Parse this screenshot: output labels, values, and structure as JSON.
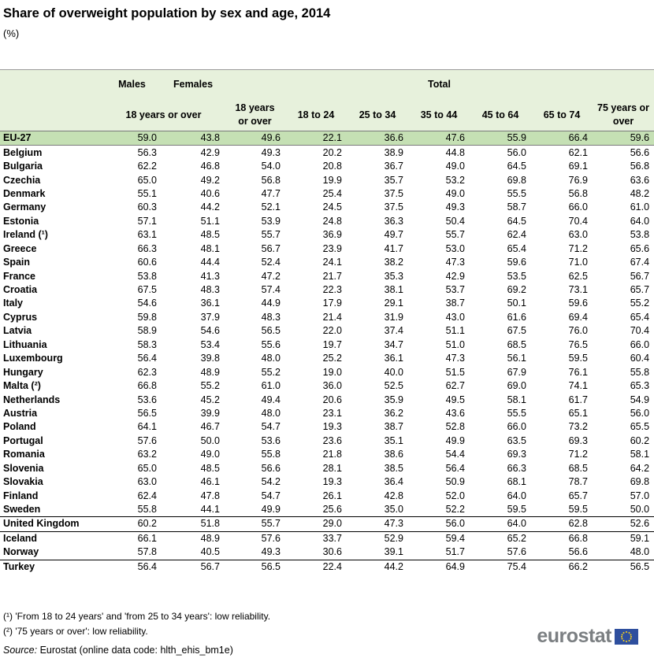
{
  "header": {
    "title": "Share of overweight population by sex and age, 2014",
    "unit": "(%)"
  },
  "table": {
    "groups": [
      "Males",
      "Females",
      "Total"
    ],
    "sub_sex": "18 years or over",
    "sub_total": [
      "18 years or over",
      "18 to 24",
      "25 to 34",
      "35 to 44",
      "45 to 64",
      "65 to 74",
      "75 years or over"
    ],
    "rows": [
      {
        "label": "EU-27",
        "values": [
          "59.0",
          "43.8",
          "49.6",
          "22.1",
          "36.6",
          "47.6",
          "55.9",
          "66.4",
          "59.6"
        ]
      },
      {
        "label": "Belgium",
        "values": [
          "56.3",
          "42.9",
          "49.3",
          "20.2",
          "38.9",
          "44.8",
          "56.0",
          "62.1",
          "56.6"
        ]
      },
      {
        "label": "Bulgaria",
        "values": [
          "62.2",
          "46.8",
          "54.0",
          "20.8",
          "36.7",
          "49.0",
          "64.5",
          "69.1",
          "56.8"
        ]
      },
      {
        "label": "Czechia",
        "values": [
          "65.0",
          "49.2",
          "56.8",
          "19.9",
          "35.7",
          "53.2",
          "69.8",
          "76.9",
          "63.6"
        ]
      },
      {
        "label": "Denmark",
        "values": [
          "55.1",
          "40.6",
          "47.7",
          "25.4",
          "37.5",
          "49.0",
          "55.5",
          "56.8",
          "48.2"
        ]
      },
      {
        "label": "Germany",
        "values": [
          "60.3",
          "44.2",
          "52.1",
          "24.5",
          "37.5",
          "49.3",
          "58.7",
          "66.0",
          "61.0"
        ]
      },
      {
        "label": "Estonia",
        "values": [
          "57.1",
          "51.1",
          "53.9",
          "24.8",
          "36.3",
          "50.4",
          "64.5",
          "70.4",
          "64.0"
        ]
      },
      {
        "label": "Ireland (¹)",
        "values": [
          "63.1",
          "48.5",
          "55.7",
          "36.9",
          "49.7",
          "55.7",
          "62.4",
          "63.0",
          "53.8"
        ]
      },
      {
        "label": "Greece",
        "values": [
          "66.3",
          "48.1",
          "56.7",
          "23.9",
          "41.7",
          "53.0",
          "65.4",
          "71.2",
          "65.6"
        ]
      },
      {
        "label": "Spain",
        "values": [
          "60.6",
          "44.4",
          "52.4",
          "24.1",
          "38.2",
          "47.3",
          "59.6",
          "71.0",
          "67.4"
        ]
      },
      {
        "label": "France",
        "values": [
          "53.8",
          "41.3",
          "47.2",
          "21.7",
          "35.3",
          "42.9",
          "53.5",
          "62.5",
          "56.7"
        ]
      },
      {
        "label": "Croatia",
        "values": [
          "67.5",
          "48.3",
          "57.4",
          "22.3",
          "38.1",
          "53.7",
          "69.2",
          "73.1",
          "65.7"
        ]
      },
      {
        "label": "Italy",
        "values": [
          "54.6",
          "36.1",
          "44.9",
          "17.9",
          "29.1",
          "38.7",
          "50.1",
          "59.6",
          "55.2"
        ]
      },
      {
        "label": "Cyprus",
        "values": [
          "59.8",
          "37.9",
          "48.3",
          "21.4",
          "31.9",
          "43.0",
          "61.6",
          "69.4",
          "65.4"
        ]
      },
      {
        "label": "Latvia",
        "values": [
          "58.9",
          "54.6",
          "56.5",
          "22.0",
          "37.4",
          "51.1",
          "67.5",
          "76.0",
          "70.4"
        ]
      },
      {
        "label": "Lithuania",
        "values": [
          "58.3",
          "53.4",
          "55.6",
          "19.7",
          "34.7",
          "51.0",
          "68.5",
          "76.5",
          "66.0"
        ]
      },
      {
        "label": "Luxembourg",
        "values": [
          "56.4",
          "39.8",
          "48.0",
          "25.2",
          "36.1",
          "47.3",
          "56.1",
          "59.5",
          "60.4"
        ]
      },
      {
        "label": "Hungary",
        "values": [
          "62.3",
          "48.9",
          "55.2",
          "19.0",
          "40.0",
          "51.5",
          "67.9",
          "76.1",
          "55.8"
        ]
      },
      {
        "label": "Malta (²)",
        "values": [
          "66.8",
          "55.2",
          "61.0",
          "36.0",
          "52.5",
          "62.7",
          "69.0",
          "74.1",
          "65.3"
        ]
      },
      {
        "label": "Netherlands",
        "values": [
          "53.6",
          "45.2",
          "49.4",
          "20.6",
          "35.9",
          "49.5",
          "58.1",
          "61.7",
          "54.9"
        ]
      },
      {
        "label": "Austria",
        "values": [
          "56.5",
          "39.9",
          "48.0",
          "23.1",
          "36.2",
          "43.6",
          "55.5",
          "65.1",
          "56.0"
        ]
      },
      {
        "label": "Poland",
        "values": [
          "64.1",
          "46.7",
          "54.7",
          "19.3",
          "38.7",
          "52.8",
          "66.0",
          "73.2",
          "65.5"
        ]
      },
      {
        "label": "Portugal",
        "values": [
          "57.6",
          "50.0",
          "53.6",
          "23.6",
          "35.1",
          "49.9",
          "63.5",
          "69.3",
          "60.2"
        ]
      },
      {
        "label": "Romania",
        "values": [
          "63.2",
          "49.0",
          "55.8",
          "21.8",
          "38.6",
          "54.4",
          "69.3",
          "71.2",
          "58.1"
        ]
      },
      {
        "label": "Slovenia",
        "values": [
          "65.0",
          "48.5",
          "56.6",
          "28.1",
          "38.5",
          "56.4",
          "66.3",
          "68.5",
          "64.2"
        ]
      },
      {
        "label": "Slovakia",
        "values": [
          "63.0",
          "46.1",
          "54.2",
          "19.3",
          "36.4",
          "50.9",
          "68.1",
          "78.7",
          "69.8"
        ]
      },
      {
        "label": "Finland",
        "values": [
          "62.4",
          "47.8",
          "54.7",
          "26.1",
          "42.8",
          "52.0",
          "64.0",
          "65.7",
          "57.0"
        ]
      },
      {
        "label": "Sweden",
        "values": [
          "55.8",
          "44.1",
          "49.9",
          "25.6",
          "35.0",
          "52.2",
          "59.5",
          "59.5",
          "50.0"
        ]
      },
      {
        "label": "United Kingdom",
        "values": [
          "60.2",
          "51.8",
          "55.7",
          "29.0",
          "47.3",
          "56.0",
          "64.0",
          "62.8",
          "52.6"
        ]
      },
      {
        "label": "Iceland",
        "values": [
          "66.1",
          "48.9",
          "57.6",
          "33.7",
          "52.9",
          "59.4",
          "65.2",
          "66.8",
          "59.1"
        ]
      },
      {
        "label": "Norway",
        "values": [
          "57.8",
          "40.5",
          "49.3",
          "30.6",
          "39.1",
          "51.7",
          "57.6",
          "56.6",
          "48.0"
        ]
      },
      {
        "label": "Turkey",
        "values": [
          "56.4",
          "56.7",
          "56.5",
          "22.4",
          "44.2",
          "64.9",
          "75.4",
          "66.2",
          "56.5"
        ]
      }
    ]
  },
  "footnotes": [
    "(¹)  'From 18 to 24 years' and 'from 25 to 34 years': low reliability.",
    "(²) '75 years or over': low reliability."
  ],
  "source": {
    "label": "Source:",
    "text": "Eurostat (online data code: hlth_ehis_bm1e)"
  },
  "logo": "eurostat"
}
